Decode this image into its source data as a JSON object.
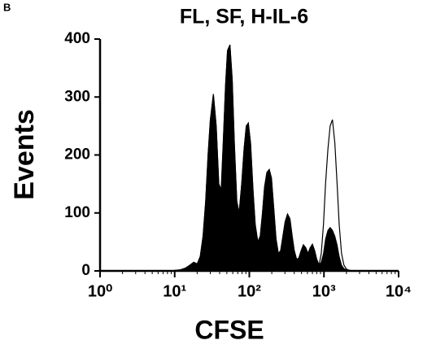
{
  "chart_data": {
    "type": "area",
    "panel_label": "B",
    "title": "FL, SF, H-IL-6",
    "x_label": "CFSE",
    "y_label": "Events",
    "x_scale": "log",
    "xlim": [
      1,
      10000
    ],
    "xticks": [
      {
        "value": 1,
        "label": "10⁰"
      },
      {
        "value": 10,
        "label": "10¹"
      },
      {
        "value": 100,
        "label": "10²"
      },
      {
        "value": 1000,
        "label": "10³"
      },
      {
        "value": 10000,
        "label": "10⁴"
      }
    ],
    "ylim": [
      0,
      400
    ],
    "yticks": [
      0,
      100,
      200,
      300,
      400
    ],
    "x": [
      10,
      12,
      14,
      16,
      18,
      20,
      22,
      24,
      26,
      28,
      30,
      33,
      36,
      39,
      42,
      45,
      48,
      51,
      55,
      59,
      63,
      68,
      73,
      79,
      85,
      91,
      97,
      104,
      112,
      120,
      130,
      140,
      150,
      160,
      172,
      185,
      198,
      212,
      228,
      245,
      263,
      282,
      302,
      325,
      350,
      375,
      400,
      430,
      460,
      495,
      530,
      570,
      610,
      655,
      700,
      750,
      800,
      860,
      920,
      985,
      1050,
      1130,
      1210,
      1300,
      1400,
      1500,
      1600,
      1720,
      1850,
      2000,
      2200,
      2500,
      3000,
      5000,
      10000
    ],
    "series": [
      {
        "filled": true,
        "color": "#000000",
        "values": [
          1,
          2,
          5,
          10,
          15,
          12,
          25,
          60,
          120,
          200,
          260,
          305,
          250,
          150,
          140,
          230,
          320,
          380,
          390,
          330,
          220,
          120,
          100,
          150,
          210,
          250,
          255,
          220,
          140,
          80,
          50,
          60,
          100,
          145,
          170,
          175,
          160,
          110,
          55,
          30,
          35,
          60,
          85,
          98,
          90,
          60,
          35,
          20,
          22,
          35,
          45,
          40,
          30,
          40,
          46,
          35,
          20,
          10,
          15,
          30,
          55,
          70,
          75,
          70,
          60,
          45,
          25,
          10,
          4,
          2,
          1,
          0,
          0,
          0,
          0
        ]
      },
      {
        "filled": false,
        "color": "#000000",
        "values": [
          1,
          2,
          5,
          10,
          15,
          12,
          25,
          60,
          120,
          200,
          260,
          305,
          250,
          150,
          140,
          230,
          320,
          380,
          390,
          330,
          220,
          120,
          100,
          150,
          210,
          250,
          255,
          220,
          140,
          80,
          50,
          60,
          100,
          145,
          170,
          175,
          160,
          110,
          55,
          30,
          35,
          60,
          85,
          98,
          90,
          60,
          35,
          20,
          22,
          35,
          45,
          40,
          30,
          40,
          46,
          35,
          20,
          10,
          30,
          80,
          150,
          210,
          250,
          261,
          220,
          150,
          80,
          30,
          10,
          3,
          1,
          0,
          0,
          0,
          0
        ]
      }
    ]
  }
}
